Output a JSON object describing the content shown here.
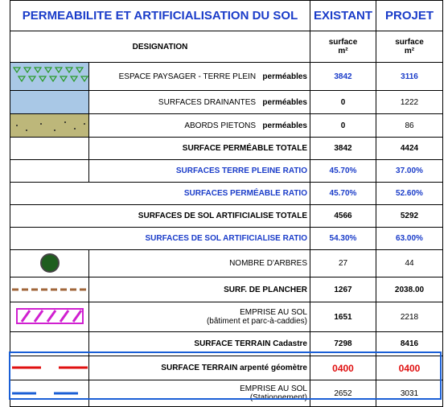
{
  "header": {
    "title": "PERMEABILITE ET ARTIFICIALISATION DU SOL",
    "existant": "EXISTANT",
    "projet": "PROJET"
  },
  "subheader": {
    "designation": "DESIGNATION",
    "existant_unit": [
      "surface",
      "m²"
    ],
    "projet_unit": [
      "surface",
      "m²"
    ]
  },
  "rows": [
    {
      "label": "ESPACE PAYSAGER - TERRE PLEIN",
      "qualifier": "perméables",
      "existant": "3842",
      "projet": "3116"
    },
    {
      "label": "SURFACES DRAINANTES",
      "qualifier": "perméables",
      "existant": "0",
      "projet": "1222"
    },
    {
      "label": "ABORDS PIETONS",
      "qualifier": "perméables",
      "existant": "0",
      "projet": "86"
    },
    {
      "label": "SURFACE PERMÉABLE TOTALE",
      "existant": "3842",
      "projet": "4424"
    },
    {
      "label": "SURFACES TERRE PLEINE RATIO",
      "existant": "45.70%",
      "projet": "37.00%"
    },
    {
      "label": "SURFACES PERMÉABLE RATIO",
      "existant": "45.70%",
      "projet": "52.60%"
    },
    {
      "label": "SURFACES DE SOL ARTIFICIALISE TOTALE",
      "existant": "4566",
      "projet": "5292"
    },
    {
      "label": "SURFACES DE SOL ARTIFICIALISE RATIO",
      "existant": "54.30%",
      "projet": "63.00%"
    },
    {
      "label": "NOMBRE D'ARBRES",
      "existant": "27",
      "projet": "44"
    },
    {
      "label": "SURF. DE PLANCHER",
      "existant": "1267",
      "projet": "2038.00"
    },
    {
      "label": "EMPRISE AU SOL",
      "qualifier": "(bâtiment et parc-à-caddies)",
      "existant": "1651",
      "projet": "2218"
    },
    {
      "label": "SURFACE TERRAIN Cadastre",
      "existant": "7298",
      "projet": "8416"
    },
    {
      "label": "SURFACE TERRAIN arpenté géomètre",
      "existant": "0400",
      "projet": "0400"
    },
    {
      "label": "EMPRISE AU SOL",
      "qualifier": "(Stationnement)",
      "existant": "2652",
      "projet": "3031"
    }
  ]
}
